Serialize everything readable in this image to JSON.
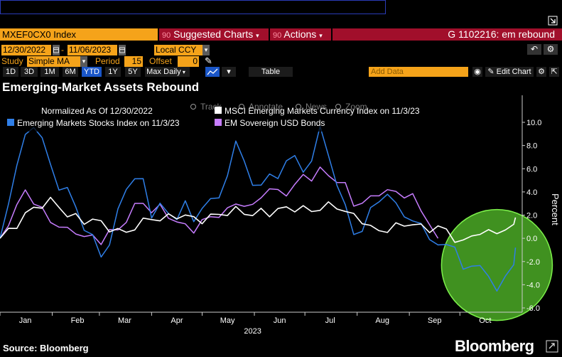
{
  "header": {
    "ticker": "MXEF0CX0 Index",
    "suggested_charts": "Suggested Charts",
    "actions": "Actions",
    "chart_id": "G 1102216: em rebound",
    "suggested_prefix": "90",
    "actions_prefix": "90"
  },
  "controls": {
    "start_date": "12/30/2022",
    "end_date": "11/06/2023",
    "currency": "Local CCY",
    "study_label": "Study",
    "study_value": "Simple MA",
    "period_label": "Period",
    "period_value": "15",
    "offset_label": "Offset",
    "offset_value": "0"
  },
  "toolbar": {
    "ranges": [
      "1D",
      "3D",
      "1M",
      "6M",
      "YTD",
      "1Y",
      "5Y",
      "Max"
    ],
    "active_range": "YTD",
    "frequency": "Daily",
    "table_label": "Table",
    "add_data_placeholder": "Add Data",
    "edit_chart": "Edit Chart"
  },
  "title": "Emerging-Market Assets Rebound",
  "source": "Source: Bloomberg",
  "brand": "Bloomberg",
  "overlay_tools": [
    "Track",
    "Annotate",
    "News",
    "Zoom"
  ],
  "colors": {
    "stocks": "#2f7fe8",
    "bonds": "#c77dff",
    "currency": "#ffffff",
    "highlight": "#55c22b",
    "orange": "#f5a31a",
    "red": "#a10f2b"
  },
  "chart_data": {
    "type": "line",
    "normalized_label": "Normalized As Of 12/30/2022",
    "ylabel": "Percent",
    "xlabel": "2023",
    "ylim": [
      -6.2,
      11.8
    ],
    "yticks": [
      -6.0,
      -4.0,
      -2.0,
      0.0,
      2.0,
      4.0,
      6.0,
      8.0,
      10.0
    ],
    "months": [
      "Jan",
      "Feb",
      "Mar",
      "Apr",
      "May",
      "Jun",
      "Jul",
      "Aug",
      "Sep",
      "Oct"
    ],
    "xlim": [
      0,
      310
    ],
    "grid": false,
    "highlight": {
      "label": "green circle around October rebound",
      "cx": 295,
      "cy": -2.3,
      "r_days": 35
    },
    "series": [
      {
        "name": "MSCI Emerging Markets Currency Index on 11/3/23",
        "color": "#ffffff",
        "x": [
          0,
          5,
          10,
          15,
          20,
          25,
          30,
          35,
          40,
          45,
          50,
          55,
          60,
          65,
          70,
          75,
          80,
          85,
          90,
          95,
          100,
          105,
          110,
          115,
          120,
          125,
          130,
          135,
          140,
          145,
          150,
          155,
          160,
          165,
          170,
          175,
          180,
          185,
          190,
          195,
          200,
          205,
          210,
          215,
          220,
          225,
          230,
          235,
          240,
          245,
          250,
          255,
          260,
          265,
          270,
          275,
          280,
          285,
          290,
          295,
          300,
          305,
          306
        ],
        "values": [
          0,
          0.6,
          1.2,
          2.0,
          2.6,
          2.9,
          3.2,
          2.8,
          2.0,
          1.8,
          1.5,
          1.6,
          1.3,
          0.9,
          0.6,
          0.5,
          1.0,
          1.4,
          1.8,
          1.6,
          1.8,
          2.0,
          1.9,
          1.7,
          1.6,
          1.8,
          2.1,
          2.2,
          2.4,
          2.3,
          2.0,
          2.3,
          2.2,
          2.4,
          2.6,
          2.6,
          2.5,
          2.4,
          2.6,
          2.8,
          2.8,
          2.3,
          1.9,
          1.6,
          0.9,
          0.6,
          0.8,
          1.0,
          1.2,
          1.3,
          0.9,
          0.8,
          1.0,
          0.6,
          0,
          -0.4,
          0.2,
          0.6,
          0.4,
          0.6,
          0.8,
          0.9,
          1.8
        ]
      },
      {
        "name": "Emerging Markets Stocks Index on 11/3/23",
        "color": "#2f7fe8",
        "x": [
          0,
          5,
          10,
          15,
          20,
          25,
          30,
          35,
          40,
          45,
          50,
          55,
          60,
          65,
          70,
          75,
          80,
          85,
          90,
          95,
          100,
          105,
          110,
          115,
          120,
          125,
          130,
          135,
          140,
          145,
          150,
          155,
          160,
          165,
          170,
          175,
          180,
          185,
          190,
          195,
          200,
          205,
          210,
          215,
          220,
          225,
          230,
          235,
          240,
          245,
          250,
          255,
          260,
          265,
          270,
          275,
          280,
          285,
          290,
          295,
          300,
          305,
          306
        ],
        "values": [
          0,
          3.0,
          6.5,
          8.6,
          9.8,
          8.7,
          6.1,
          4.5,
          4.2,
          2.6,
          1.0,
          0.0,
          -1.5,
          -0.4,
          2.2,
          4.5,
          5.1,
          4.9,
          2.1,
          2.8,
          2.1,
          1.9,
          2.9,
          1.6,
          2.7,
          3.1,
          3.8,
          5.3,
          8.2,
          7.0,
          4.3,
          4.6,
          5.8,
          4.8,
          6.9,
          7.2,
          5.4,
          7.0,
          9.5,
          7.0,
          4.9,
          2.6,
          0.4,
          0.8,
          2.3,
          3.4,
          3.8,
          2.8,
          2.2,
          1.3,
          1.2,
          0.2,
          -0.9,
          -0.4,
          -0.6,
          -3.0,
          -2.1,
          -2.4,
          -3.5,
          -4.2,
          -3.5,
          -2.3,
          -0.8
        ]
      },
      {
        "name": "EM Sovereign USD Bonds",
        "color": "#c77dff",
        "x": [
          0,
          5,
          10,
          15,
          20,
          25,
          30,
          35,
          40,
          45,
          50,
          55,
          60,
          65,
          70,
          75,
          80,
          85,
          90,
          95,
          100,
          105,
          110,
          115,
          120,
          125,
          130,
          135,
          140,
          145,
          150,
          155,
          160,
          165,
          170,
          175,
          180,
          185,
          190,
          195,
          200,
          205,
          210,
          215,
          220,
          225,
          230,
          235,
          240,
          245,
          250,
          255,
          260
        ],
        "values": [
          0,
          1.4,
          2.8,
          4.0,
          3.3,
          2.4,
          1.4,
          1.2,
          0.6,
          0.6,
          0.2,
          0.0,
          -0.2,
          0.6,
          0.6,
          1.7,
          2.7,
          3.1,
          2.4,
          2.6,
          2.0,
          1.4,
          1.0,
          0.8,
          1.4,
          1.8,
          2.1,
          2.3,
          3.1,
          2.9,
          2.6,
          3.8,
          4.2,
          4.0,
          4.0,
          4.4,
          5.5,
          5.2,
          5.8,
          5.6,
          4.9,
          4.5,
          3.1,
          2.9,
          3.5,
          4.0,
          3.9,
          4.1,
          3.7,
          3.5,
          2.6,
          1.2,
          0.0
        ]
      }
    ]
  }
}
